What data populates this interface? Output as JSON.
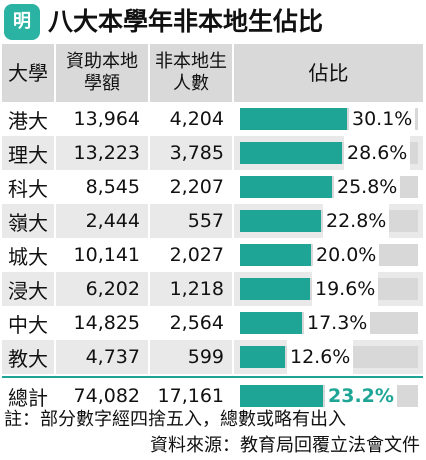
{
  "header": {
    "logo_text": "明",
    "title": "八大本學年非本地生佔比"
  },
  "chart_data": {
    "type": "table",
    "columns": [
      {
        "lines": [
          "大學"
        ]
      },
      {
        "lines": [
          "資助本地",
          "學額"
        ]
      },
      {
        "lines": [
          "非本地生",
          "人數"
        ]
      },
      {
        "lines": [
          "佔比"
        ]
      }
    ],
    "rows": [
      {
        "name": "港大",
        "funded": "13,964",
        "nonlocal": "4,204",
        "pct": 30.1,
        "pct_label": "30.1%"
      },
      {
        "name": "理大",
        "funded": "13,223",
        "nonlocal": "3,785",
        "pct": 28.6,
        "pct_label": "28.6%"
      },
      {
        "name": "科大",
        "funded": "8,545",
        "nonlocal": "2,207",
        "pct": 25.8,
        "pct_label": "25.8%"
      },
      {
        "name": "嶺大",
        "funded": "2,444",
        "nonlocal": "557",
        "pct": 22.8,
        "pct_label": "22.8%"
      },
      {
        "name": "城大",
        "funded": "10,141",
        "nonlocal": "2,027",
        "pct": 20.0,
        "pct_label": "20.0%"
      },
      {
        "name": "浸大",
        "funded": "6,202",
        "nonlocal": "1,218",
        "pct": 19.6,
        "pct_label": "19.6%"
      },
      {
        "name": "中大",
        "funded": "14,825",
        "nonlocal": "2,564",
        "pct": 17.3,
        "pct_label": "17.3%"
      },
      {
        "name": "教大",
        "funded": "4,737",
        "nonlocal": "599",
        "pct": 12.6,
        "pct_label": "12.6%"
      }
    ],
    "total": {
      "name": "總計",
      "funded": "74,082",
      "nonlocal": "17,161",
      "pct": 23.2,
      "pct_label": "23.2%"
    },
    "bar_max": 50
  },
  "colors": {
    "accent": "#1fa596",
    "logo": "#2ab3a3",
    "track": "#d8d8d8",
    "stripe": "#e9e9e9",
    "header_bg": "#d9d9d9"
  },
  "footer": {
    "note": "註：部分數字經四捨五入，總數或略有出入",
    "source": "資料來源：教育局回覆立法會文件"
  }
}
